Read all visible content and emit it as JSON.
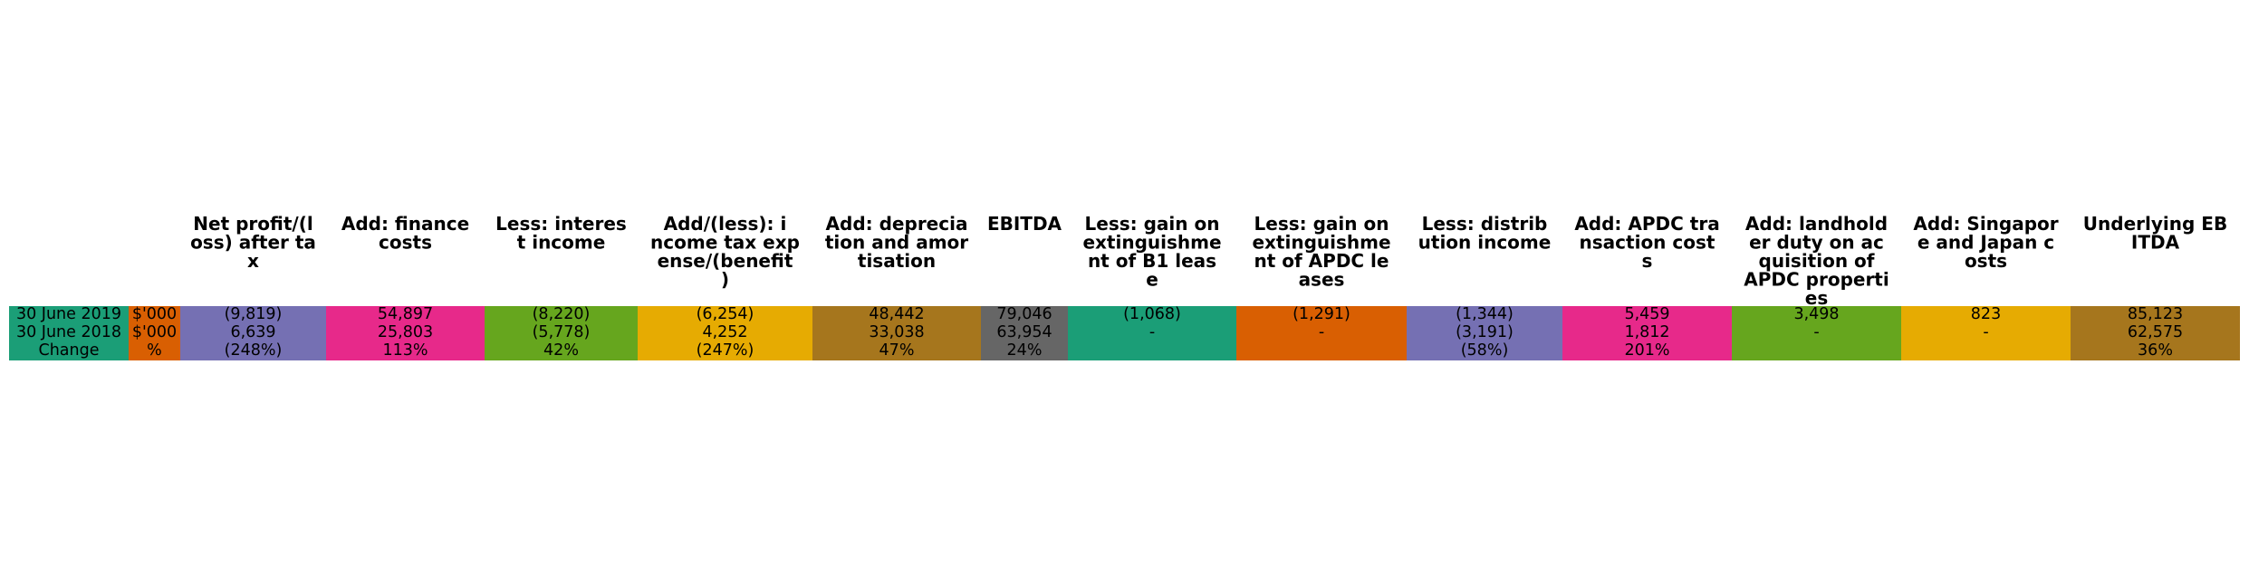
{
  "chart_data": {
    "type": "table",
    "row_labels": [
      "30 June 2019",
      "30 June 2018",
      "Change"
    ],
    "units": [
      "$'000",
      "$'000",
      "%"
    ],
    "columns": [
      {
        "header": [
          "Net profit/(l",
          "oss) after ta",
          "x"
        ],
        "values": [
          "(9,819)",
          "6,639",
          "(248%)"
        ],
        "color": "#7570b3"
      },
      {
        "header": [
          "Add: finance",
          "costs"
        ],
        "values": [
          "54,897",
          "25,803",
          "113%"
        ],
        "color": "#e7298a"
      },
      {
        "header": [
          "Less: interes",
          "t income"
        ],
        "values": [
          "(8,220)",
          "(5,778)",
          "42%"
        ],
        "color": "#66a61e"
      },
      {
        "header": [
          "Add/(less): i",
          "ncome tax exp",
          "ense/(benefit",
          ")"
        ],
        "values": [
          "(6,254)",
          "4,252",
          "(247%)"
        ],
        "color": "#e6ab02"
      },
      {
        "header": [
          "Add: deprecia",
          "tion and amor",
          "tisation"
        ],
        "values": [
          "48,442",
          "33,038",
          "47%"
        ],
        "color": "#a6761d"
      },
      {
        "header": [
          "EBITDA"
        ],
        "values": [
          "79,046",
          "63,954",
          "24%"
        ],
        "color": "#666666"
      },
      {
        "header": [
          "Less: gain on",
          "extinguishme",
          "nt of B1 leas",
          "e"
        ],
        "values": [
          "(1,068)",
          "-",
          ""
        ],
        "color": "#1b9e77"
      },
      {
        "header": [
          "Less: gain on",
          "extinguishme",
          "nt of APDC le",
          "ases"
        ],
        "values": [
          "(1,291)",
          "-",
          ""
        ],
        "color": "#d95f02"
      },
      {
        "header": [
          "Less: distrib",
          "ution income"
        ],
        "values": [
          "(1,344)",
          "(3,191)",
          "(58%)"
        ],
        "color": "#7570b3"
      },
      {
        "header": [
          "Add: APDC tra",
          "nsaction cost",
          "s"
        ],
        "values": [
          "5,459",
          "1,812",
          "201%"
        ],
        "color": "#e7298a"
      },
      {
        "header": [
          "Add: landhold",
          "er duty on ac",
          "quisition of",
          "APDC properti",
          "es"
        ],
        "values": [
          "3,498",
          "-",
          ""
        ],
        "color": "#66a61e"
      },
      {
        "header": [
          "Add: Singapor",
          "e and Japan c",
          "osts"
        ],
        "values": [
          "823",
          "-",
          ""
        ],
        "color": "#e6ab02"
      },
      {
        "header": [
          "Underlying EB",
          "ITDA"
        ],
        "values": [
          "85,123",
          "62,575",
          "36%"
        ],
        "color": "#a6761d"
      }
    ],
    "row_label_color": "#1b9e77",
    "unit_color": "#d95f02"
  }
}
